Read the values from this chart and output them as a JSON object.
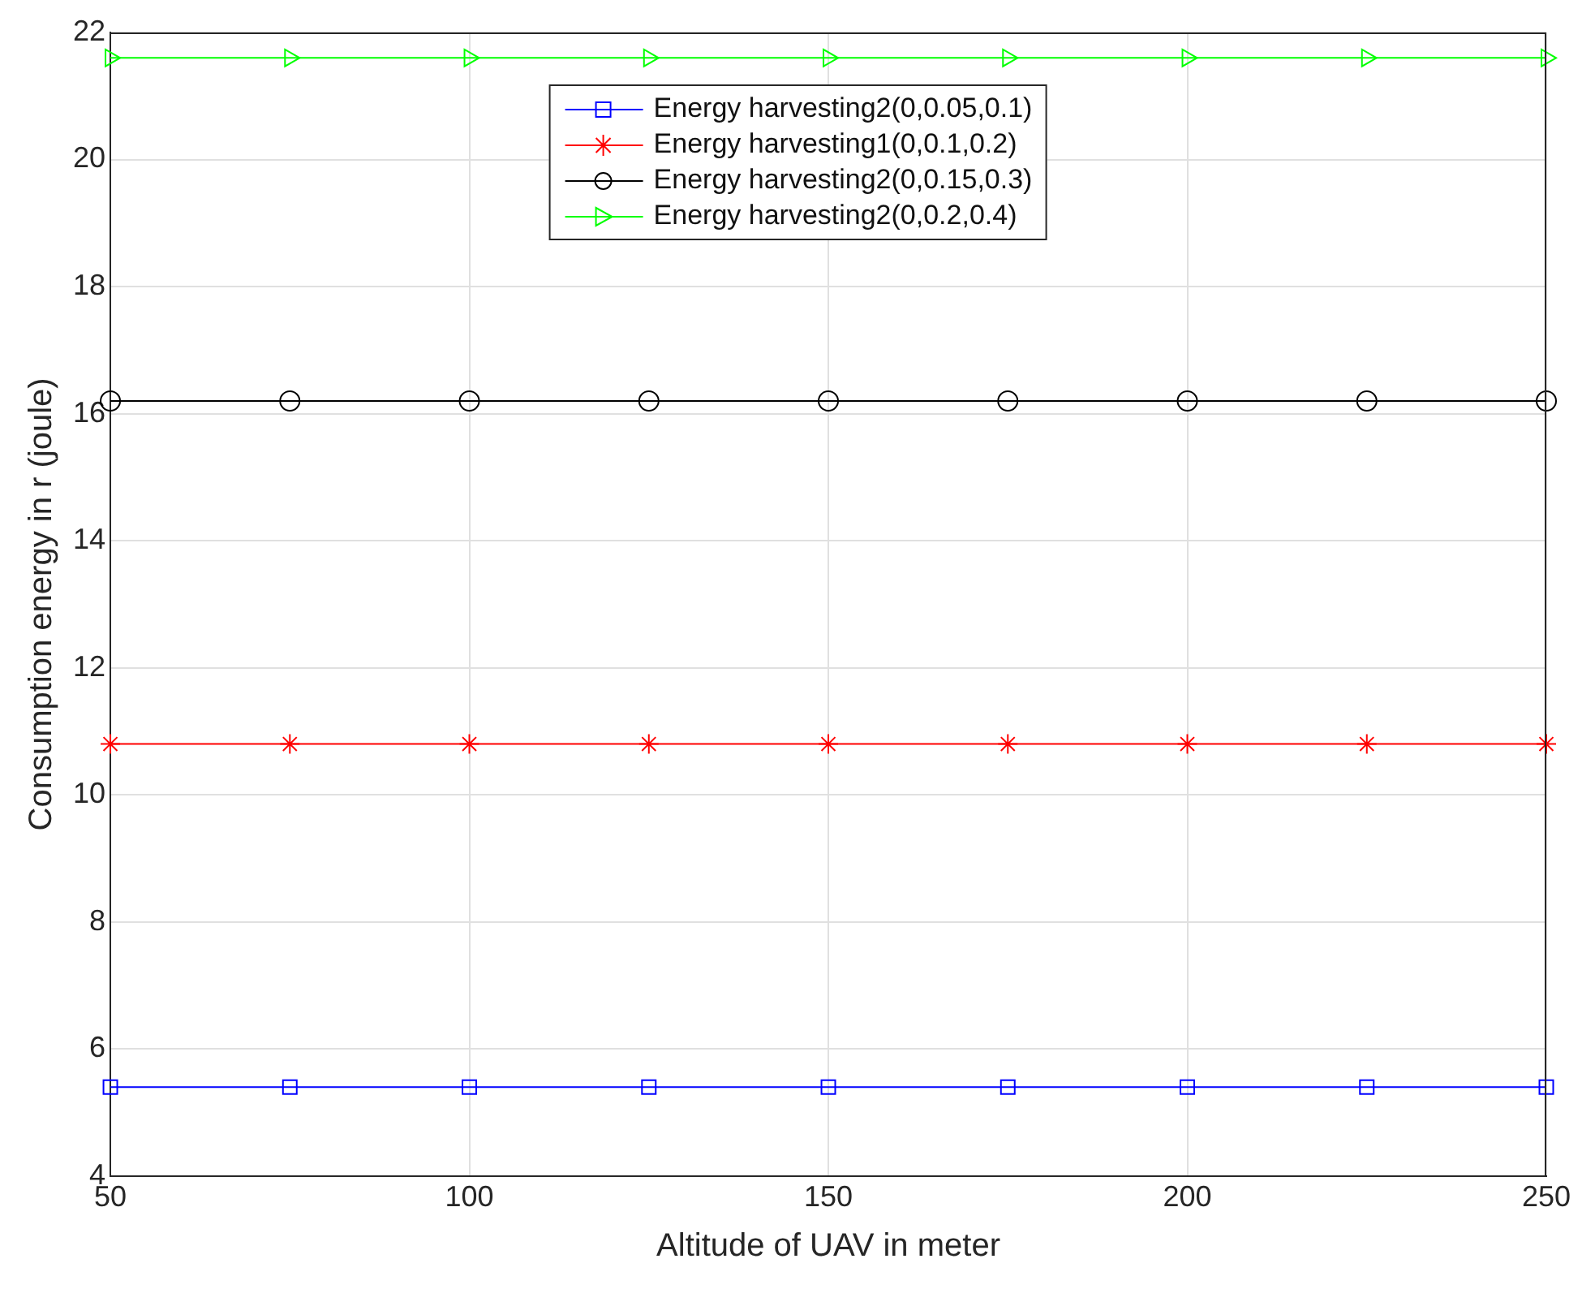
{
  "chart_data": {
    "type": "line",
    "xlabel": "Altitude of UAV in meter",
    "ylabel": "Consumption energy in r (joule)",
    "x": [
      50,
      75,
      100,
      125,
      150,
      175,
      200,
      225,
      250
    ],
    "series": [
      {
        "name": "Energy harvesting2(0,0.05,0.1)",
        "color": "#0000ff",
        "marker": "square",
        "values": [
          5.4,
          5.4,
          5.4,
          5.4,
          5.4,
          5.4,
          5.4,
          5.4,
          5.4
        ]
      },
      {
        "name": "Energy harvesting1(0,0.1,0.2)",
        "color": "#ff0000",
        "marker": "cross",
        "values": [
          10.8,
          10.8,
          10.8,
          10.8,
          10.8,
          10.8,
          10.8,
          10.8,
          10.8
        ]
      },
      {
        "name": "Energy harvesting2(0,0.15,0.3)",
        "color": "#000000",
        "marker": "circle",
        "values": [
          16.2,
          16.2,
          16.2,
          16.2,
          16.2,
          16.2,
          16.2,
          16.2,
          16.2
        ]
      },
      {
        "name": "Energy harvesting2(0,0.2,0.4)",
        "color": "#00ff00",
        "marker": "triangle",
        "values": [
          21.6,
          21.6,
          21.6,
          21.6,
          21.6,
          21.6,
          21.6,
          21.6,
          21.6
        ]
      }
    ],
    "xlim": [
      50,
      250
    ],
    "xticks": [
      50,
      100,
      150,
      200,
      250
    ],
    "ylim": [
      4,
      22
    ],
    "yticks": [
      4,
      6,
      8,
      10,
      12,
      14,
      16,
      18,
      20,
      22
    ],
    "grid": true,
    "legend": "top",
    "line_style": "solid"
  }
}
